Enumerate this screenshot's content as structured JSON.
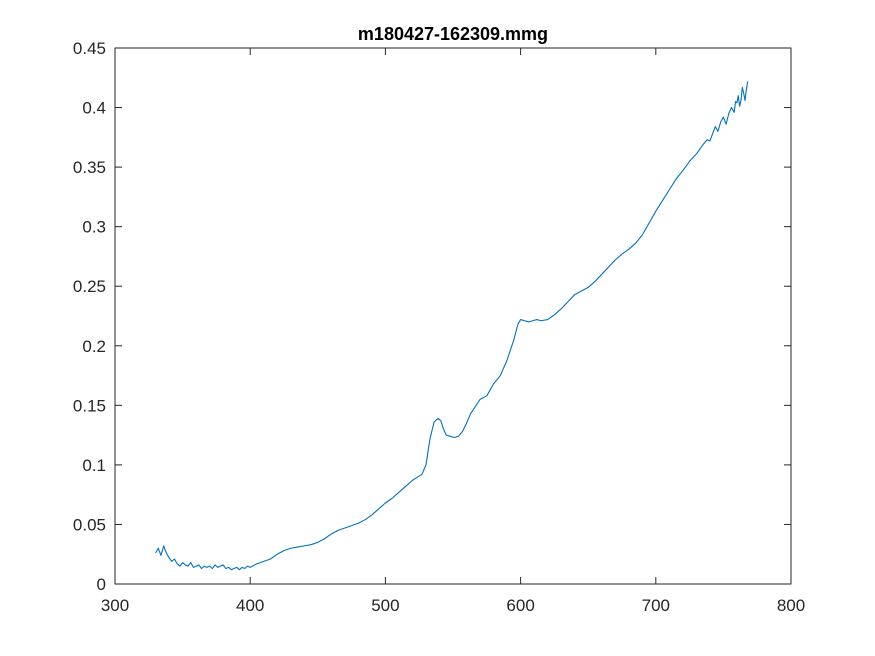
{
  "chart_data": {
    "type": "line",
    "title": "m180427-162309.mmg",
    "xlabel": "",
    "ylabel": "",
    "xlim": [
      300,
      800
    ],
    "ylim": [
      0,
      0.45
    ],
    "xticks": [
      300,
      400,
      500,
      600,
      700,
      800
    ],
    "yticks": [
      0,
      0.05,
      0.1,
      0.15,
      0.2,
      0.25,
      0.3,
      0.35,
      0.4,
      0.45
    ],
    "xtick_labels": [
      "300",
      "400",
      "500",
      "600",
      "700",
      "800"
    ],
    "ytick_labels": [
      "0",
      "0.05",
      "0.1",
      "0.15",
      "0.2",
      "0.25",
      "0.3",
      "0.35",
      "0.4",
      "0.45"
    ],
    "grid": false,
    "line_color": "#0072bd",
    "series": [
      {
        "x": [
          330,
          332,
          334,
          336,
          338,
          340,
          342,
          344,
          346,
          348,
          350,
          352,
          354,
          356,
          358,
          360,
          362,
          364,
          366,
          368,
          370,
          372,
          374,
          376,
          378,
          380,
          382,
          384,
          386,
          388,
          390,
          392,
          394,
          396,
          398,
          400,
          405,
          410,
          415,
          420,
          425,
          430,
          435,
          440,
          445,
          450,
          455,
          460,
          465,
          470,
          475,
          480,
          485,
          490,
          495,
          500,
          505,
          510,
          515,
          520,
          524,
          527,
          530,
          533,
          536,
          539,
          541,
          543,
          545,
          548,
          551,
          554,
          557,
          560,
          563,
          566,
          570,
          575,
          580,
          585,
          590,
          595,
          598,
          600,
          603,
          606,
          609,
          612,
          615,
          620,
          625,
          630,
          635,
          640,
          645,
          650,
          655,
          660,
          665,
          670,
          675,
          680,
          685,
          690,
          695,
          700,
          705,
          710,
          715,
          720,
          725,
          730,
          735,
          738,
          740,
          742,
          744,
          746,
          748,
          750,
          752,
          754,
          756,
          758,
          759,
          760,
          761,
          762,
          763,
          764,
          765,
          766,
          767,
          768
        ],
        "y": [
          0.026,
          0.03,
          0.024,
          0.032,
          0.026,
          0.022,
          0.019,
          0.021,
          0.017,
          0.015,
          0.018,
          0.016,
          0.015,
          0.018,
          0.014,
          0.015,
          0.016,
          0.013,
          0.015,
          0.014,
          0.015,
          0.013,
          0.016,
          0.014,
          0.015,
          0.016,
          0.013,
          0.014,
          0.012,
          0.013,
          0.014,
          0.012,
          0.014,
          0.013,
          0.015,
          0.014,
          0.017,
          0.019,
          0.021,
          0.025,
          0.028,
          0.03,
          0.031,
          0.032,
          0.033,
          0.035,
          0.038,
          0.042,
          0.045,
          0.047,
          0.049,
          0.051,
          0.054,
          0.058,
          0.063,
          0.068,
          0.072,
          0.077,
          0.082,
          0.087,
          0.09,
          0.092,
          0.1,
          0.122,
          0.136,
          0.139,
          0.137,
          0.13,
          0.125,
          0.124,
          0.123,
          0.124,
          0.128,
          0.135,
          0.143,
          0.148,
          0.155,
          0.158,
          0.168,
          0.175,
          0.188,
          0.205,
          0.218,
          0.222,
          0.221,
          0.22,
          0.221,
          0.222,
          0.221,
          0.222,
          0.226,
          0.231,
          0.237,
          0.243,
          0.246,
          0.249,
          0.254,
          0.26,
          0.266,
          0.272,
          0.277,
          0.281,
          0.286,
          0.293,
          0.303,
          0.313,
          0.322,
          0.331,
          0.34,
          0.347,
          0.355,
          0.361,
          0.369,
          0.373,
          0.372,
          0.378,
          0.384,
          0.38,
          0.388,
          0.392,
          0.386,
          0.395,
          0.4,
          0.396,
          0.405,
          0.404,
          0.41,
          0.401,
          0.406,
          0.417,
          0.412,
          0.406,
          0.415,
          0.422
        ]
      }
    ]
  }
}
